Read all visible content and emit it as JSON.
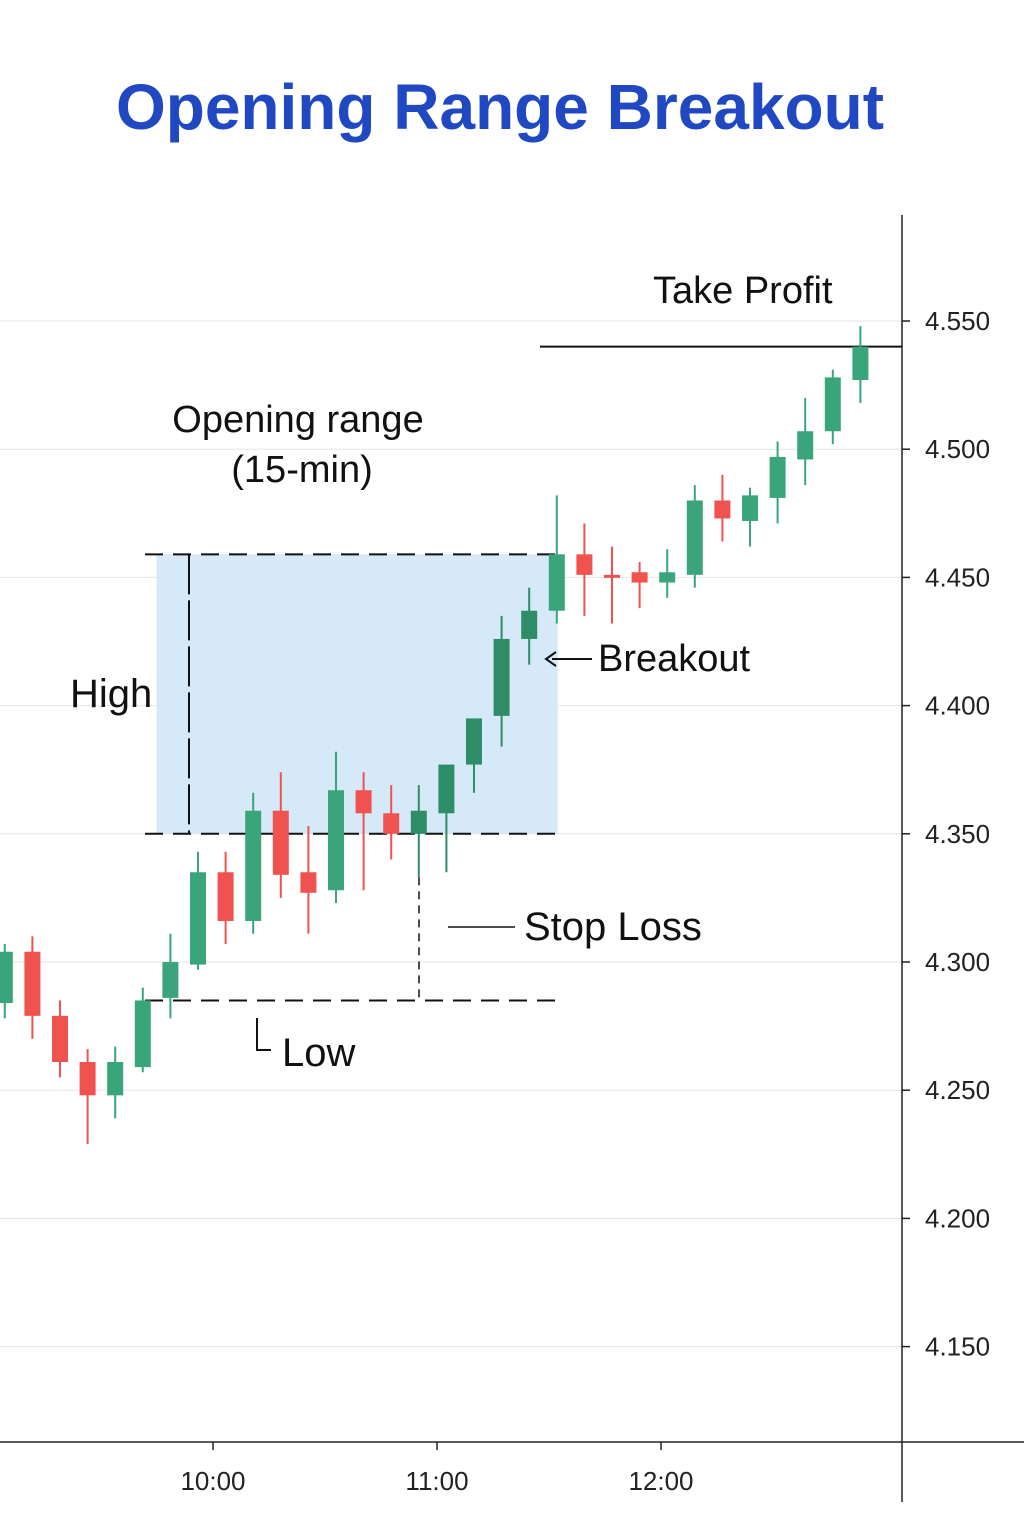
{
  "chart_data": {
    "type": "candlestick",
    "title": "Opening Range Breakout",
    "xlabel": "",
    "ylabel": "",
    "ylim": [
      4.105,
      4.575
    ],
    "y_ticks": [
      "4.550",
      "4.500",
      "4.450",
      "4.400",
      "4.350",
      "4.300",
      "4.250",
      "4.200",
      "4.150"
    ],
    "x_ticks": [
      "10:00",
      "11:00",
      "12:00"
    ],
    "grid": true,
    "colors": {
      "up": "#3aa57a",
      "down": "#f0524f",
      "up_dark": "#2e8c67",
      "range_fill": "#d6e9f8",
      "title": "#1f48c2"
    },
    "candles": [
      {
        "o": 4.284,
        "h": 4.307,
        "l": 4.278,
        "c": 4.304
      },
      {
        "o": 4.304,
        "h": 4.31,
        "l": 4.27,
        "c": 4.279
      },
      {
        "o": 4.279,
        "h": 4.285,
        "l": 4.255,
        "c": 4.261
      },
      {
        "o": 4.261,
        "h": 4.266,
        "l": 4.229,
        "c": 4.248
      },
      {
        "o": 4.248,
        "h": 4.267,
        "l": 4.239,
        "c": 4.261
      },
      {
        "o": 4.259,
        "h": 4.29,
        "l": 4.257,
        "c": 4.285
      },
      {
        "o": 4.286,
        "h": 4.311,
        "l": 4.278,
        "c": 4.3
      },
      {
        "o": 4.299,
        "h": 4.343,
        "l": 4.297,
        "c": 4.335
      },
      {
        "o": 4.335,
        "h": 4.343,
        "l": 4.307,
        "c": 4.316
      },
      {
        "o": 4.316,
        "h": 4.366,
        "l": 4.311,
        "c": 4.359
      },
      {
        "o": 4.359,
        "h": 4.374,
        "l": 4.325,
        "c": 4.334
      },
      {
        "o": 4.335,
        "h": 4.353,
        "l": 4.311,
        "c": 4.327
      },
      {
        "o": 4.328,
        "h": 4.382,
        "l": 4.323,
        "c": 4.367
      },
      {
        "o": 4.367,
        "h": 4.374,
        "l": 4.328,
        "c": 4.358
      },
      {
        "o": 4.358,
        "h": 4.369,
        "l": 4.34,
        "c": 4.35
      },
      {
        "o": 4.35,
        "h": 4.369,
        "l": 4.333,
        "c": 4.359
      },
      {
        "o": 4.358,
        "h": 4.375,
        "l": 4.335,
        "c": 4.377
      },
      {
        "o": 4.377,
        "h": 4.394,
        "l": 4.366,
        "c": 4.395
      },
      {
        "o": 4.396,
        "h": 4.435,
        "l": 4.384,
        "c": 4.426
      },
      {
        "o": 4.426,
        "h": 4.446,
        "l": 4.416,
        "c": 4.437
      },
      {
        "o": 4.437,
        "h": 4.482,
        "l": 4.432,
        "c": 4.459
      },
      {
        "o": 4.459,
        "h": 4.471,
        "l": 4.435,
        "c": 4.451
      },
      {
        "o": 4.451,
        "h": 4.462,
        "l": 4.432,
        "c": 4.45
      },
      {
        "o": 4.452,
        "h": 4.456,
        "l": 4.438,
        "c": 4.448
      },
      {
        "o": 4.448,
        "h": 4.461,
        "l": 4.442,
        "c": 4.452
      },
      {
        "o": 4.451,
        "h": 4.486,
        "l": 4.446,
        "c": 4.48
      },
      {
        "o": 4.48,
        "h": 4.49,
        "l": 4.464,
        "c": 4.473
      },
      {
        "o": 4.472,
        "h": 4.485,
        "l": 4.462,
        "c": 4.482
      },
      {
        "o": 4.481,
        "h": 4.503,
        "l": 4.471,
        "c": 4.497
      },
      {
        "o": 4.496,
        "h": 4.52,
        "l": 4.486,
        "c": 4.507
      },
      {
        "o": 4.507,
        "h": 4.531,
        "l": 4.502,
        "c": 4.528
      },
      {
        "o": 4.527,
        "h": 4.548,
        "l": 4.518,
        "c": 4.54
      }
    ],
    "opening_range": {
      "high": 4.459,
      "low": 4.35,
      "start_candle": 5.5,
      "end_candle": 20
    },
    "low_level": 4.285,
    "take_profit": 4.54,
    "annotations": {
      "opening_range": "Opening range",
      "opening_range_sub": "(15-min)",
      "high": "High",
      "low": "Low",
      "breakout": "Breakout",
      "stop_loss": "Stop Loss",
      "take_profit": "Take Profit"
    }
  }
}
